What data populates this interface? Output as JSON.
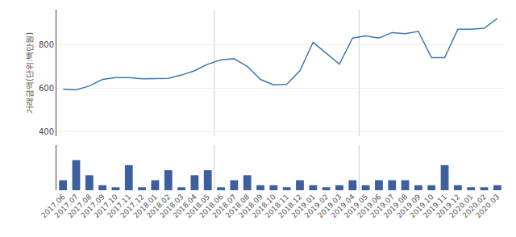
{
  "chart_data": [
    {
      "type": "line",
      "categories": [
        "2017.06",
        "2017.07",
        "2017.08",
        "2017.09",
        "2017.10",
        "2017.11",
        "2017.12",
        "2018.01",
        "2018.02",
        "2018.03",
        "2018.04",
        "2018.05",
        "2018.06",
        "2018.07",
        "2018.08",
        "2018.09",
        "2018.10",
        "2018.11",
        "2018.12",
        "2019.01",
        "2019.02",
        "2019.03",
        "2019.04",
        "2019.05",
        "2019.06",
        "2019.07",
        "2019.08",
        "2019.09",
        "2019.10",
        "2019.11",
        "2019.12",
        "2020.01",
        "2020.02",
        "2020.03"
      ],
      "values": [
        595,
        592,
        610,
        640,
        648,
        648,
        643,
        643,
        645,
        660,
        680,
        710,
        730,
        735,
        700,
        640,
        615,
        618,
        680,
        810,
        760,
        710,
        830,
        840,
        830,
        855,
        850,
        860,
        740,
        740,
        870,
        870,
        875,
        920
      ],
      "color": "#3c78b4",
      "ylabel": "거래금액(단위:백만원)",
      "ylim": [
        380,
        960
      ],
      "yticks": [
        400,
        600,
        800
      ],
      "grid": true,
      "tick_labels": "y",
      "vlines": [
        11.5,
        22.5
      ]
    },
    {
      "type": "bar",
      "categories": [
        "2017.06",
        "2017.07",
        "2017.08",
        "2017.09",
        "2017.10",
        "2017.11",
        "2017.12",
        "2018.01",
        "2018.02",
        "2018.03",
        "2018.04",
        "2018.05",
        "2018.06",
        "2018.07",
        "2018.08",
        "2018.09",
        "2018.10",
        "2018.11",
        "2018.12",
        "2019.01",
        "2019.02",
        "2019.03",
        "2019.04",
        "2019.05",
        "2019.06",
        "2019.07",
        "2019.08",
        "2019.09",
        "2019.10",
        "2019.11",
        "2019.12",
        "2020.01",
        "2020.02",
        "2020.03"
      ],
      "values": [
        1,
        3,
        1.5,
        0.5,
        0.3,
        2.5,
        0.3,
        1,
        2,
        0.3,
        1.5,
        2,
        0.3,
        1,
        1.5,
        0.5,
        0.5,
        0.3,
        1,
        0.5,
        0.3,
        0.5,
        1,
        0.5,
        1,
        1,
        1,
        0.5,
        0.5,
        2.5,
        0.5,
        0.3,
        0.3,
        0.5
      ],
      "color": "#3c5fa0",
      "ylim": [
        0,
        4.5
      ],
      "grid": false,
      "tick_labels": "x",
      "vlines": [
        11.5,
        22.5
      ]
    }
  ]
}
